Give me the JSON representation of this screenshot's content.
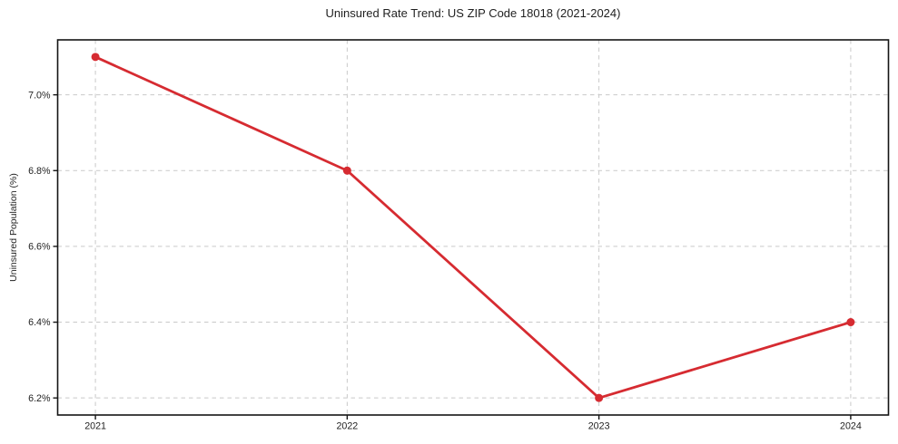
{
  "chart_data": {
    "type": "line",
    "title": "Uninsured Rate Trend: US ZIP Code 18018 (2021-2024)",
    "xlabel": "",
    "ylabel": "Uninsured Population (%)",
    "x": [
      2021,
      2022,
      2023,
      2024
    ],
    "x_tick_labels": [
      "2021",
      "2022",
      "2023",
      "2024"
    ],
    "values": [
      7.1,
      6.8,
      6.2,
      6.4
    ],
    "y_ticks": [
      {
        "value": 6.2,
        "label": "6.2%"
      },
      {
        "value": 6.4,
        "label": "6.4%"
      },
      {
        "value": 6.6,
        "label": "6.6%"
      },
      {
        "value": 6.8,
        "label": "6.8%"
      },
      {
        "value": 7.0,
        "label": "7.0%"
      }
    ],
    "xlim": [
      2020.85,
      2024.15
    ],
    "ylim": [
      6.155,
      7.145
    ],
    "grid": true,
    "grid_style": "dashed",
    "legend": false,
    "marker": "circle",
    "colors": {
      "line": "#d62b31",
      "grid": "#c9c9c9",
      "axis": "#141414",
      "text": "#1f1f1f",
      "background": "#ffffff"
    }
  }
}
